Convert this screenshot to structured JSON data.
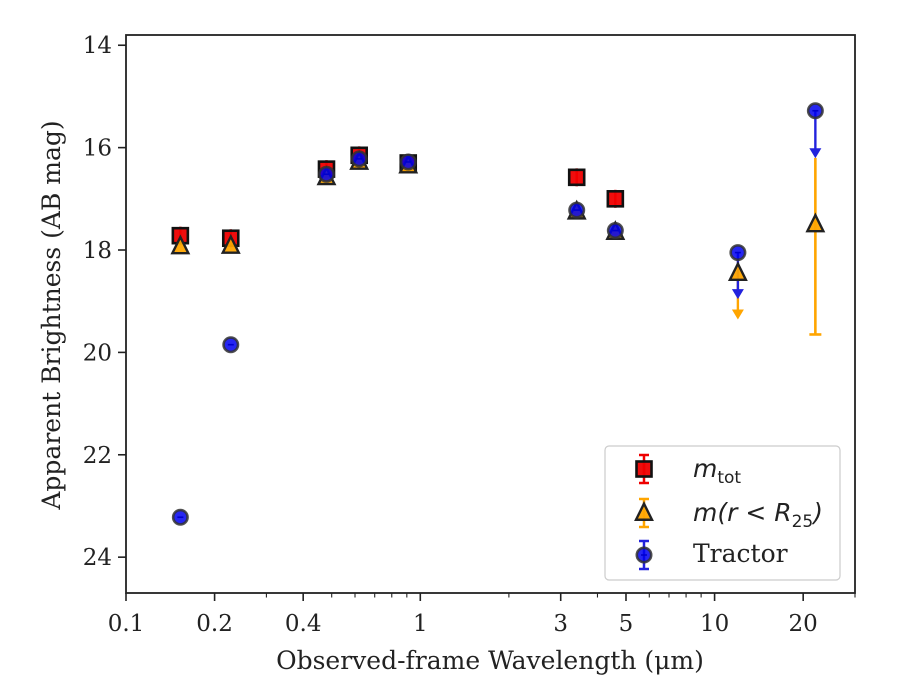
{
  "chart_data": {
    "type": "scatter",
    "xlabel": "Observed-frame Wavelength (μm)",
    "ylabel": "Apparent Brightness (AB mag)",
    "x_scale": "log",
    "xlim": [
      0.1,
      30
    ],
    "ylim": [
      24.7,
      13.8
    ],
    "y_inverted": true,
    "x_ticks": [
      0.1,
      0.2,
      0.4,
      1,
      3,
      5,
      10,
      20
    ],
    "x_tick_labels": [
      "0.1",
      "0.2",
      "0.4",
      "1",
      "3",
      "5",
      "10",
      "20"
    ],
    "y_ticks": [
      14,
      16,
      18,
      20,
      22,
      24
    ],
    "y_tick_labels": [
      "14",
      "16",
      "18",
      "20",
      "22",
      "24"
    ],
    "legend_position": "lower-right",
    "series": [
      {
        "key": "mtot",
        "marker": "square",
        "color": "#ee0000",
        "points": [
          {
            "x": 0.153,
            "y": 17.72
          },
          {
            "x": 0.227,
            "y": 17.77
          },
          {
            "x": 0.48,
            "y": 16.42
          },
          {
            "x": 0.62,
            "y": 16.15
          },
          {
            "x": 0.91,
            "y": 16.3
          },
          {
            "x": 3.4,
            "y": 16.58
          },
          {
            "x": 4.6,
            "y": 17.0
          }
        ]
      },
      {
        "key": "mr25",
        "marker": "triangle",
        "color": "#ffa500",
        "points": [
          {
            "x": 0.153,
            "y": 17.93
          },
          {
            "x": 0.227,
            "y": 17.92
          },
          {
            "x": 0.48,
            "y": 16.58
          },
          {
            "x": 0.62,
            "y": 16.28
          },
          {
            "x": 0.91,
            "y": 16.35
          },
          {
            "x": 3.4,
            "y": 17.25
          },
          {
            "x": 4.6,
            "y": 17.65
          },
          {
            "x": 12.0,
            "y": 18.45,
            "upper_limit_to": 19.3
          },
          {
            "x": 22.0,
            "y": 17.5,
            "yerr_low": 16.2,
            "yerr_high": 19.65
          }
        ]
      },
      {
        "key": "tractor",
        "marker": "circle",
        "color": "#0000ee",
        "points": [
          {
            "x": 0.153,
            "y": 23.22
          },
          {
            "x": 0.227,
            "y": 19.85
          },
          {
            "x": 0.48,
            "y": 16.52
          },
          {
            "x": 0.62,
            "y": 16.22
          },
          {
            "x": 0.91,
            "y": 16.28
          },
          {
            "x": 3.4,
            "y": 17.22
          },
          {
            "x": 4.6,
            "y": 17.62
          },
          {
            "x": 12.0,
            "y": 18.05,
            "upper_limit_to": 18.9
          },
          {
            "x": 22.0,
            "y": 15.28,
            "upper_limit_to": 16.15
          }
        ]
      }
    ],
    "legend": [
      {
        "series": "mtot",
        "label_main": "m",
        "label_sub": "tot",
        "label_tail": ""
      },
      {
        "series": "mr25",
        "label_main": "m(r < R",
        "label_sub": "25",
        "label_tail": ")"
      },
      {
        "series": "tractor",
        "label_text": "Tractor"
      }
    ]
  }
}
